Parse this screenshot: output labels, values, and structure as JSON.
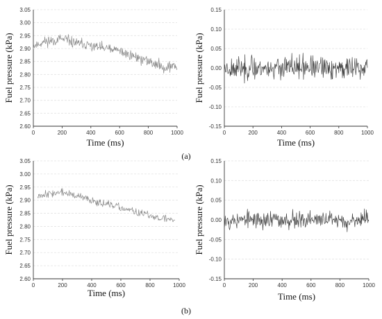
{
  "figure": {
    "labels": {
      "a": "(a)",
      "b": "(b)"
    }
  },
  "colors": {
    "line_original": "#8a8a8a",
    "line_noise": "#444444",
    "grid": "#e2e2e2",
    "axis": "#333333"
  },
  "chart_data": [
    {
      "id": "a_left",
      "type": "line",
      "title": "",
      "xlabel": "Time (ms)",
      "ylabel": "Fuel pressure (kPa)",
      "xlim": [
        0,
        1000
      ],
      "ylim": [
        2.6,
        3.05
      ],
      "xticks": [
        "0",
        "200",
        "400",
        "600",
        "800",
        "1000"
      ],
      "yticks": [
        "3.05",
        "3.00",
        "2.95",
        "2.90",
        "2.85",
        "2.80",
        "2.75",
        "2.70",
        "2.65",
        "2.60"
      ],
      "grid": "horizontal dashed",
      "series": [
        {
          "x": [
            0,
            100,
            200,
            300,
            400,
            500,
            600,
            700,
            800,
            900,
            1000
          ],
          "values": [
            2.91,
            2.93,
            2.935,
            2.92,
            2.91,
            2.9,
            2.89,
            2.87,
            2.85,
            2.83,
            2.83
          ],
          "noise_amplitude": 0.05
        }
      ]
    },
    {
      "id": "a_right",
      "type": "line",
      "title": "",
      "xlabel": "Time (ms)",
      "ylabel": "Fuel pressure (kPa)",
      "xlim": [
        0,
        1000
      ],
      "ylim": [
        -0.15,
        0.15
      ],
      "xticks": [
        "0",
        "200",
        "400",
        "600",
        "800",
        "1000"
      ],
      "yticks": [
        "0.15",
        "0.10",
        "0.05",
        "0.00",
        "-0.05",
        "-0.10",
        "-0.15"
      ],
      "grid": "horizontal dashed",
      "series": [
        {
          "x": [
            0,
            1000
          ],
          "values": [
            0.0,
            0.0
          ],
          "noise_amplitude": 0.07
        }
      ]
    },
    {
      "id": "b_left",
      "type": "line",
      "title": "",
      "xlabel": "Time (ms)",
      "ylabel": "Fuel pressure (kPa)",
      "xlim": [
        0,
        1000
      ],
      "ylim": [
        2.6,
        3.05
      ],
      "xticks": [
        "0",
        "200",
        "400",
        "600",
        "800",
        "1000"
      ],
      "yticks": [
        "3.05",
        "3.00",
        "2.95",
        "2.90",
        "2.85",
        "2.80",
        "2.75",
        "2.70",
        "2.65",
        "2.60"
      ],
      "grid": "horizontal dashed",
      "series": [
        {
          "x": [
            30,
            100,
            200,
            300,
            400,
            500,
            600,
            700,
            800,
            900,
            970
          ],
          "values": [
            2.92,
            2.925,
            2.93,
            2.915,
            2.9,
            2.885,
            2.87,
            2.855,
            2.84,
            2.83,
            2.825
          ],
          "noise_amplitude": 0.035
        }
      ]
    },
    {
      "id": "b_right",
      "type": "line",
      "title": "",
      "xlabel": "Time (ms)",
      "ylabel": "Fuel pressure (kPa)",
      "xlim": [
        0,
        1000
      ],
      "ylim": [
        -0.15,
        0.15
      ],
      "xticks": [
        "0",
        "200",
        "400",
        "600",
        "800",
        "1000"
      ],
      "yticks": [
        "0.15",
        "0.10",
        "0.05",
        "0.00",
        "-0.05",
        "-0.10",
        "-0.15"
      ],
      "grid": "horizontal dashed",
      "series": [
        {
          "x": [
            0,
            1000
          ],
          "values": [
            0.0,
            0.0
          ],
          "noise_amplitude": 0.055
        }
      ]
    }
  ]
}
